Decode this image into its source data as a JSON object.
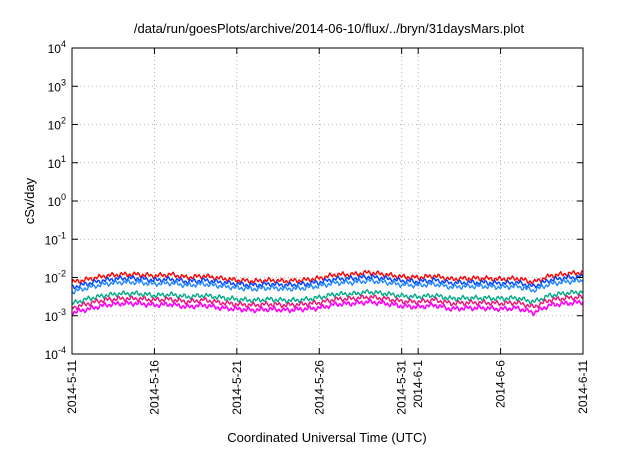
{
  "chart_data": {
    "type": "line",
    "title": "/data/run/goesPlots/archive/2014-06-10/flux/../bryn/31daysMars.plot",
    "xlabel": "Coordinated Universal Time (UTC)",
    "ylabel": "cSv/day",
    "xlim": [
      "2014-05-11",
      "2014-06-11"
    ],
    "ylim": [
      0.0001,
      10000
    ],
    "yscale": "log",
    "grid": true,
    "legend": "none",
    "x_ticks": [
      {
        "date": "2014-05-11",
        "label": "2014-5-11"
      },
      {
        "date": "2014-05-16",
        "label": "2014-5-16"
      },
      {
        "date": "2014-05-21",
        "label": "2014-5-21"
      },
      {
        "date": "2014-05-26",
        "label": "2014-5-26"
      },
      {
        "date": "2014-05-31",
        "label": "2014-5-31"
      },
      {
        "date": "2014-06-01",
        "label": "2014-6-1"
      },
      {
        "date": "2014-06-06",
        "label": "2014-6-6"
      },
      {
        "date": "2014-06-11",
        "label": "2014-6-11"
      }
    ],
    "y_ticks": [
      {
        "value": 0.0001,
        "base": "10",
        "exp": "-4"
      },
      {
        "value": 0.001,
        "base": "10",
        "exp": "-3"
      },
      {
        "value": 0.01,
        "base": "10",
        "exp": "-2"
      },
      {
        "value": 0.1,
        "base": "10",
        "exp": "-1"
      },
      {
        "value": 1,
        "base": "10",
        "exp": "0"
      },
      {
        "value": 10,
        "base": "10",
        "exp": "1"
      },
      {
        "value": 100,
        "base": "10",
        "exp": "2"
      },
      {
        "value": 1000,
        "base": "10",
        "exp": "3"
      },
      {
        "value": 10000,
        "base": "10",
        "exp": "4"
      }
    ],
    "x": [
      "2014-05-11",
      "2014-05-12",
      "2014-05-13",
      "2014-05-14",
      "2014-05-15",
      "2014-05-16",
      "2014-05-17",
      "2014-05-18",
      "2014-05-19",
      "2014-05-20",
      "2014-05-21",
      "2014-05-22",
      "2014-05-23",
      "2014-05-24",
      "2014-05-25",
      "2014-05-26",
      "2014-05-27",
      "2014-05-28",
      "2014-05-29",
      "2014-05-30",
      "2014-05-31",
      "2014-06-01",
      "2014-06-02",
      "2014-06-03",
      "2014-06-04",
      "2014-06-05",
      "2014-06-06",
      "2014-06-07",
      "2014-06-08",
      "2014-06-09",
      "2014-06-10",
      "2014-06-11"
    ],
    "series": [
      {
        "color": "#ff0000",
        "values": [
          0.0075,
          0.009,
          0.011,
          0.012,
          0.012,
          0.011,
          0.012,
          0.01,
          0.011,
          0.0095,
          0.0085,
          0.008,
          0.0085,
          0.008,
          0.0085,
          0.0095,
          0.012,
          0.012,
          0.0135,
          0.012,
          0.0105,
          0.01,
          0.011,
          0.009,
          0.0095,
          0.0095,
          0.009,
          0.0095,
          0.0075,
          0.011,
          0.0125,
          0.0135
        ]
      },
      {
        "color": "#0044ff",
        "values": [
          0.0055,
          0.007,
          0.0085,
          0.0095,
          0.0095,
          0.0085,
          0.009,
          0.0078,
          0.0085,
          0.0075,
          0.0068,
          0.0063,
          0.0068,
          0.0063,
          0.0067,
          0.0075,
          0.0092,
          0.0094,
          0.0105,
          0.0095,
          0.0082,
          0.0078,
          0.0086,
          0.0071,
          0.0074,
          0.0074,
          0.007,
          0.0074,
          0.0058,
          0.0086,
          0.0098,
          0.0105
        ]
      },
      {
        "color": "#2288ff",
        "values": [
          0.0042,
          0.0055,
          0.0068,
          0.0075,
          0.0075,
          0.0068,
          0.0072,
          0.0062,
          0.0068,
          0.006,
          0.0054,
          0.005,
          0.0054,
          0.005,
          0.0053,
          0.006,
          0.0073,
          0.0074,
          0.0083,
          0.0075,
          0.0065,
          0.0062,
          0.0068,
          0.0056,
          0.0059,
          0.0059,
          0.0056,
          0.0059,
          0.0046,
          0.0068,
          0.0078,
          0.0083
        ]
      },
      {
        "color": "#00aa88",
        "values": [
          0.0021,
          0.0028,
          0.0034,
          0.0038,
          0.0038,
          0.0034,
          0.0036,
          0.0031,
          0.0034,
          0.003,
          0.0027,
          0.0025,
          0.0027,
          0.0025,
          0.0026,
          0.003,
          0.0037,
          0.0037,
          0.0042,
          0.0038,
          0.0033,
          0.0031,
          0.0034,
          0.0028,
          0.0029,
          0.0029,
          0.0028,
          0.0029,
          0.0023,
          0.0034,
          0.0039,
          0.0042
        ]
      },
      {
        "color": "#ee1177",
        "values": [
          0.0016,
          0.0021,
          0.0026,
          0.0028,
          0.0028,
          0.0026,
          0.0027,
          0.0023,
          0.0026,
          0.0022,
          0.002,
          0.0019,
          0.002,
          0.0019,
          0.002,
          0.0022,
          0.0027,
          0.0028,
          0.0031,
          0.0028,
          0.0024,
          0.0023,
          0.0026,
          0.0021,
          0.0022,
          0.0022,
          0.0021,
          0.0022,
          0.0017,
          0.0026,
          0.0029,
          0.0031
        ]
      },
      {
        "color": "#ff00ff",
        "values": [
          0.0012,
          0.0015,
          0.0019,
          0.0021,
          0.0021,
          0.0019,
          0.002,
          0.0017,
          0.0019,
          0.0016,
          0.0015,
          0.0014,
          0.0015,
          0.0014,
          0.0015,
          0.0016,
          0.002,
          0.0021,
          0.0023,
          0.0021,
          0.0018,
          0.0017,
          0.0019,
          0.0015,
          0.0016,
          0.0016,
          0.0015,
          0.0016,
          0.0012,
          0.0019,
          0.0021,
          0.0023
        ]
      }
    ]
  }
}
